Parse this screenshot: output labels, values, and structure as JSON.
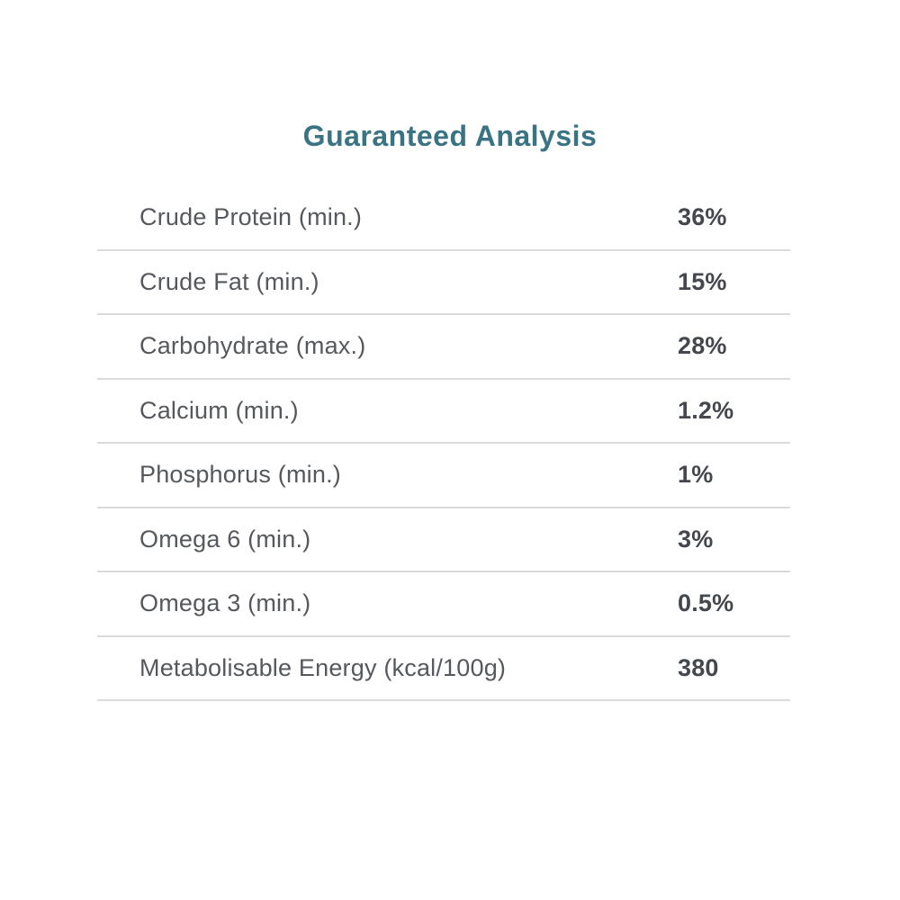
{
  "page": {
    "title": "Guaranteed Analysis"
  },
  "table": {
    "rows": [
      {
        "label": "Crude Protein (min.)",
        "value": "36%"
      },
      {
        "label": "Crude Fat (min.)",
        "value": "15%"
      },
      {
        "label": "Carbohydrate (max.)",
        "value": "28%"
      },
      {
        "label": "Calcium (min.)",
        "value": "1.2%"
      },
      {
        "label": "Phosphorus (min.)",
        "value": "1%"
      },
      {
        "label": "Omega 6 (min.)",
        "value": "3%"
      },
      {
        "label": "Omega 3 (min.)",
        "value": "0.5%"
      },
      {
        "label": "Metabolisable Energy (kcal/100g)",
        "value": "380"
      }
    ]
  },
  "colors": {
    "title": "#3a7383",
    "label": "#55585d",
    "value": "#44484e",
    "divider": "#dadada",
    "background": "#ffffff"
  }
}
